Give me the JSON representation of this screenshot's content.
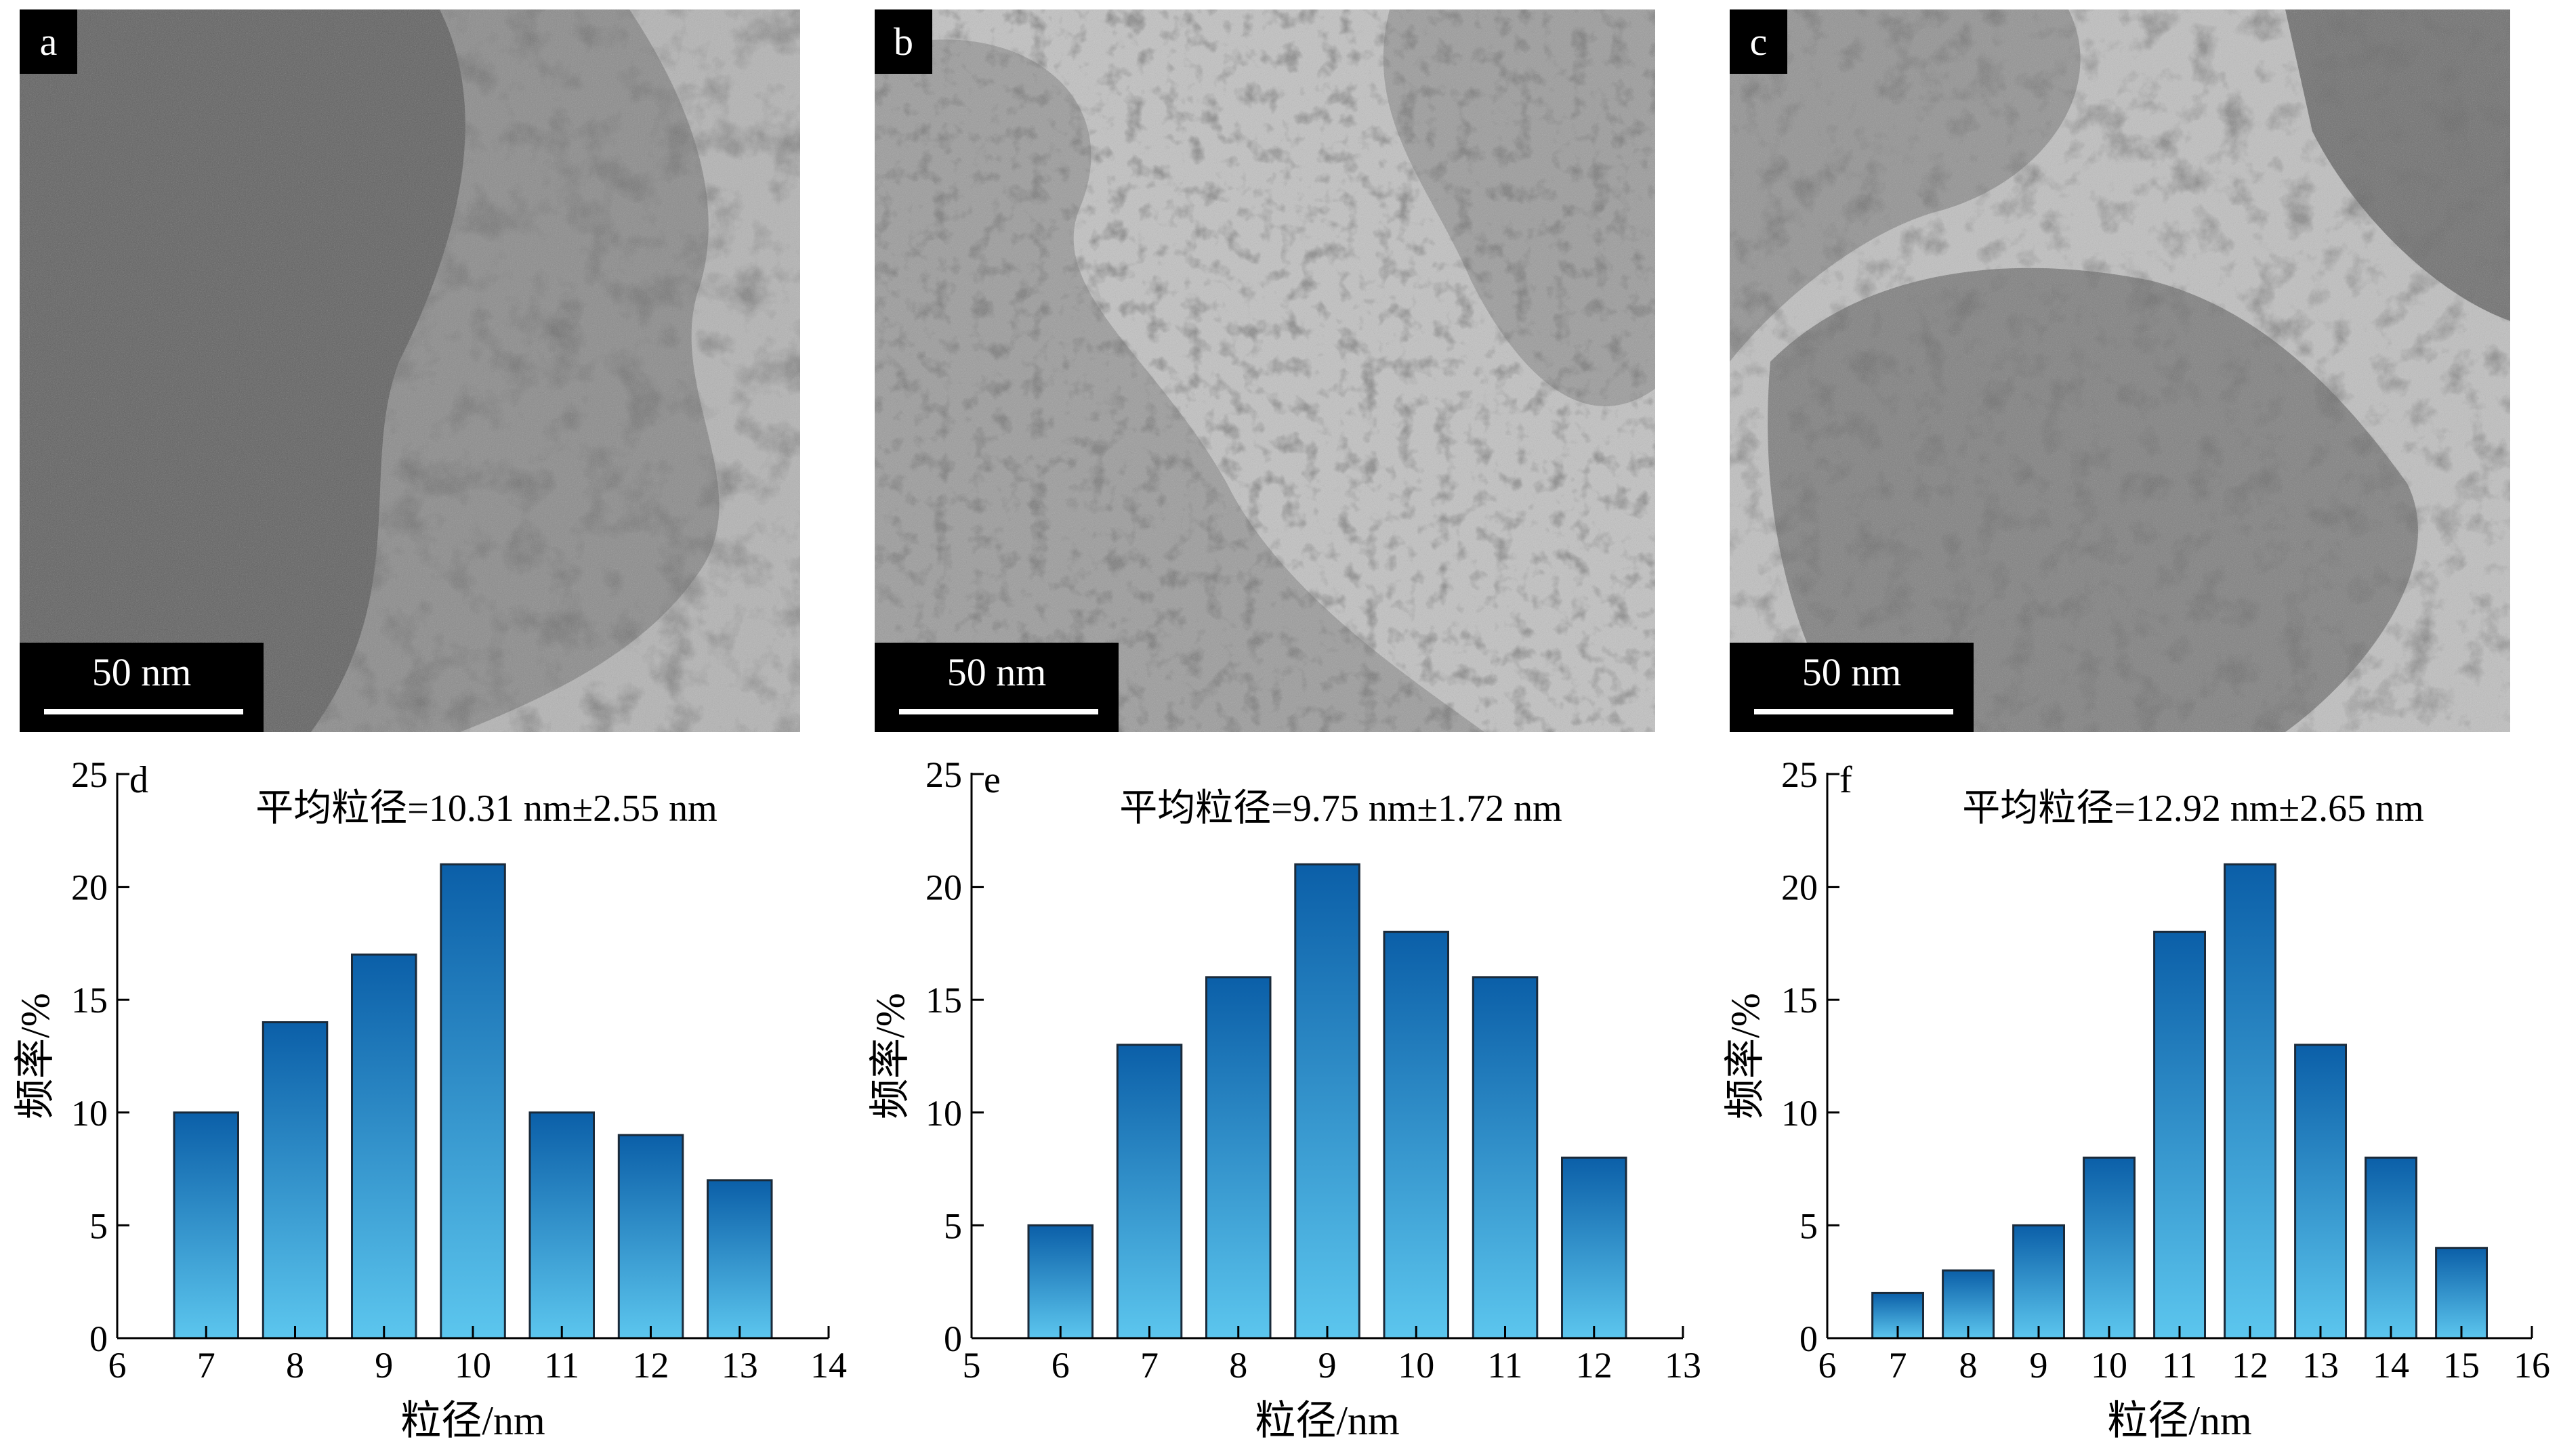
{
  "tem_panels": [
    {
      "label": "a",
      "scale": "50 nm"
    },
    {
      "label": "b",
      "scale": "50 nm"
    },
    {
      "label": "c",
      "scale": "50 nm"
    }
  ],
  "colors": {
    "bar_top": "#0b5fa8",
    "bar_bottom": "#5cc6ee",
    "bar_stroke": "#1a2a3a"
  },
  "chart_data": [
    {
      "type": "bar",
      "label": "d",
      "annotation": "平均粒径=10.31 nm±2.55 nm",
      "xlabel": "粒径/nm",
      "ylabel": "频率/%",
      "xlim": [
        6,
        14
      ],
      "ylim": [
        0,
        25
      ],
      "xticks": [
        "6",
        "7",
        "8",
        "9",
        "10",
        "11",
        "12",
        "13",
        "14"
      ],
      "yticks": [
        "0",
        "5",
        "10",
        "15",
        "20",
        "25"
      ],
      "x": [
        7,
        8,
        9,
        10,
        11,
        12,
        13
      ],
      "values": [
        10,
        14,
        17,
        21,
        10,
        9,
        7
      ]
    },
    {
      "type": "bar",
      "label": "e",
      "annotation": "平均粒径=9.75 nm±1.72 nm",
      "xlabel": "粒径/nm",
      "ylabel": "频率/%",
      "xlim": [
        5,
        13
      ],
      "ylim": [
        0,
        25
      ],
      "xticks": [
        "5",
        "6",
        "7",
        "8",
        "9",
        "10",
        "11",
        "12",
        "13"
      ],
      "yticks": [
        "0",
        "5",
        "10",
        "15",
        "20",
        "25"
      ],
      "x": [
        6,
        7,
        8,
        9,
        10,
        11,
        12
      ],
      "values": [
        5,
        13,
        16,
        21,
        18,
        16,
        8
      ]
    },
    {
      "type": "bar",
      "label": "f",
      "annotation": "平均粒径=12.92 nm±2.65 nm",
      "xlabel": "粒径/nm",
      "ylabel": "频率/%",
      "xlim": [
        6,
        16
      ],
      "ylim": [
        0,
        25
      ],
      "xticks": [
        "6",
        "7",
        "8",
        "9",
        "10",
        "11",
        "12",
        "13",
        "14",
        "15",
        "16"
      ],
      "yticks": [
        "0",
        "5",
        "10",
        "15",
        "20",
        "25"
      ],
      "x": [
        7,
        8,
        9,
        10,
        11,
        12,
        13,
        14,
        15
      ],
      "values": [
        2,
        3,
        5,
        8,
        18,
        21,
        13,
        8,
        4
      ]
    }
  ]
}
